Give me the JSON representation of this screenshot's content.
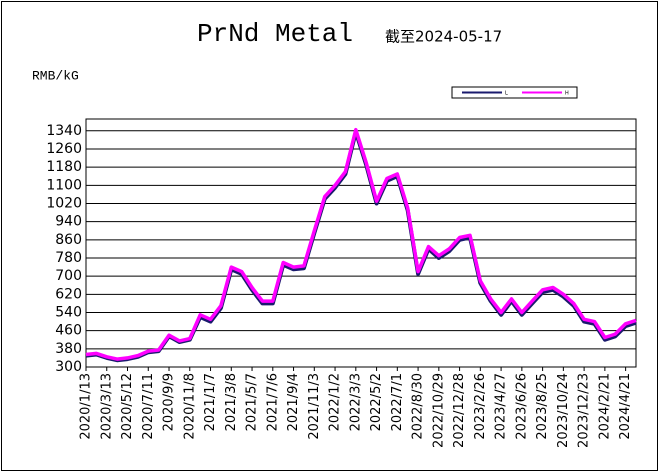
{
  "chart_data": {
    "type": "line",
    "title": "PrNd Metal",
    "subtitle": "截至2024-05-17",
    "y_label": "RMB/kG",
    "categories": [
      "2020/1/13",
      null,
      "2020/3/13",
      null,
      "2020/5/12",
      null,
      "2020/7/11",
      null,
      "2020/9/9",
      null,
      "2020/11/8",
      null,
      "2021/1/7",
      null,
      "2021/3/8",
      null,
      "2021/5/7",
      null,
      "2021/7/6",
      null,
      "2021/9/4",
      null,
      "2021/11/3",
      null,
      "2022/1/2",
      null,
      "2022/3/3",
      null,
      "2022/5/2",
      null,
      "2022/7/1",
      null,
      "2022/8/30",
      null,
      "2022/10/29",
      null,
      "2022/12/28",
      null,
      "2023/2/26",
      null,
      "2023/4/27",
      null,
      "2023/6/26",
      null,
      "2023/8/25",
      null,
      "2023/10/24",
      null,
      "2023/12/23",
      null,
      "2024/2/21",
      null,
      "2024/4/21",
      null
    ],
    "series": [
      {
        "name": "L",
        "color": "#1a1a6e",
        "values": [
          350,
          355,
          340,
          330,
          335,
          345,
          365,
          370,
          435,
          410,
          420,
          520,
          500,
          560,
          730,
          710,
          640,
          580,
          580,
          750,
          730,
          735,
          890,
          1040,
          1090,
          1150,
          1335,
          1190,
          1020,
          1120,
          1140,
          990,
          710,
          820,
          780,
          810,
          860,
          870,
          670,
          590,
          530,
          590,
          530,
          580,
          630,
          640,
          610,
          570,
          500,
          490,
          420,
          435,
          480,
          495
        ]
      },
      {
        "name": "H",
        "color": "#ff00ff",
        "values": [
          355,
          360,
          345,
          335,
          340,
          350,
          370,
          375,
          440,
          415,
          425,
          530,
          510,
          570,
          740,
          720,
          650,
          590,
          590,
          760,
          740,
          745,
          900,
          1050,
          1100,
          1160,
          1345,
          1200,
          1030,
          1130,
          1150,
          1000,
          720,
          830,
          790,
          820,
          870,
          880,
          680,
          600,
          540,
          600,
          540,
          590,
          640,
          650,
          620,
          580,
          510,
          500,
          430,
          445,
          490,
          505
        ]
      }
    ],
    "ylim": [
      300,
      1392
    ],
    "yticks": [
      300,
      380,
      460,
      540,
      620,
      700,
      780,
      860,
      940,
      1020,
      1100,
      1180,
      1260,
      1340
    ],
    "grid": true
  }
}
